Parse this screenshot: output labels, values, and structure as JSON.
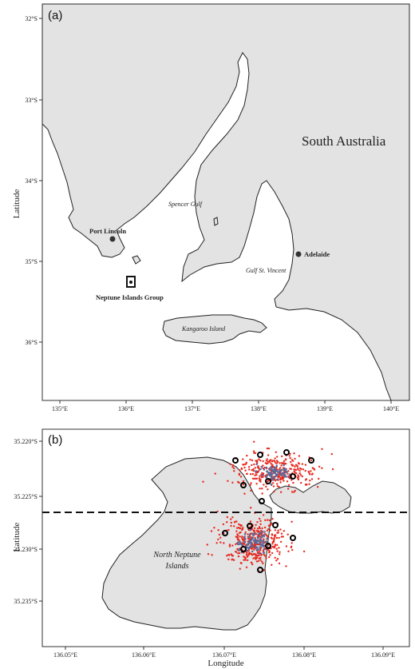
{
  "panel_a": {
    "label": "(a)",
    "y_axis_label": "Latitude",
    "lat_ticks": [
      "32°S",
      "33°S",
      "34°S",
      "35°S",
      "36°S"
    ],
    "lon_ticks": [
      "135°E",
      "136°E",
      "137°E",
      "138°E",
      "139°E",
      "140°E"
    ],
    "region_label": "South Australia",
    "places": {
      "port_lincoln": "Port Lincoln",
      "adelaide": "Adelaide",
      "neptune": "Neptune Islands Group",
      "spencer_gulf": "Spencer Gulf",
      "gulf_st_vincent": "Gulf St. Vincent",
      "kangaroo_island": "Kangaroo Island"
    },
    "colors": {
      "land": "#e3e3e3",
      "sea": "#ffffff",
      "outline": "#222222"
    }
  },
  "panel_b": {
    "label": "(b)",
    "x_axis_label": "Longitude",
    "y_axis_label": "Latitude",
    "lat_ticks": [
      "35.220°S",
      "35.225°S",
      "35.230°S",
      "35.235°S"
    ],
    "lon_ticks": [
      "136.05°E",
      "136.06°E",
      "136.07°E",
      "136.08°E",
      "136.09°E"
    ],
    "island_label_line1": "North Neptune",
    "island_label_line2": "Islands",
    "colors": {
      "points_red": "#e8281e",
      "points_blue": "#5a6a9a",
      "stations": "#000000"
    }
  }
}
